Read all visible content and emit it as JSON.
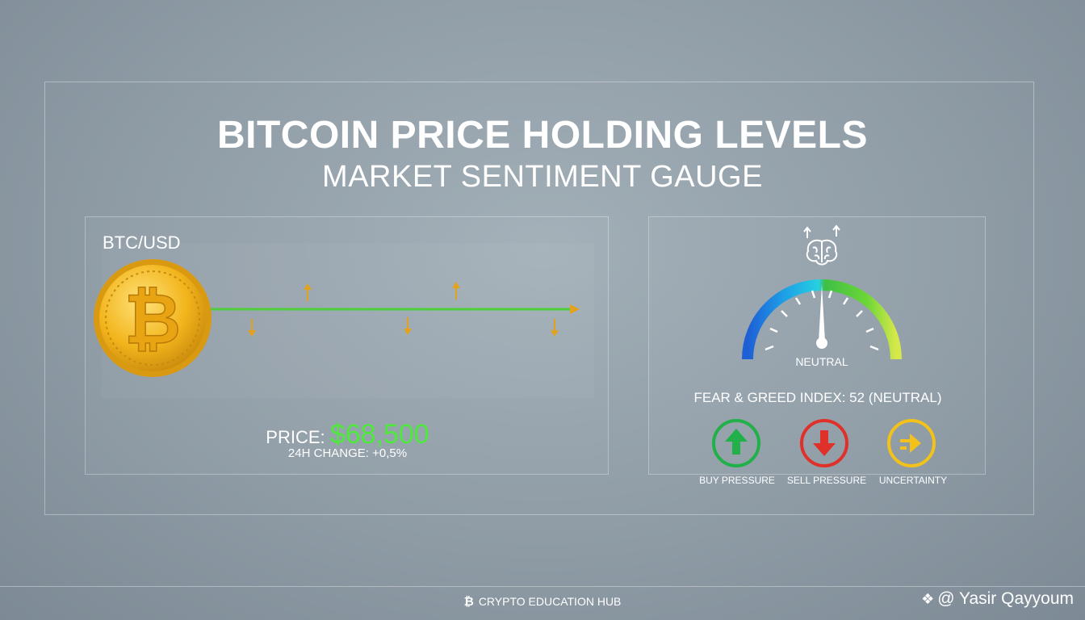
{
  "header": {
    "title": "BITCOIN PRICE HOLDING LEVELS",
    "subtitle": "MARKET SENTIMENT GAUGE"
  },
  "price_panel": {
    "pair": "BTC/USD",
    "price_label": "PRICE:",
    "price_value": "$68,500",
    "change_text": "24H CHANGE: +0,5%",
    "coin_icon": "bitcoin-coin-icon",
    "line_color": "#4ccf3a",
    "arrow_color": "#e3a21e"
  },
  "sentiment_panel": {
    "gauge_label": "NEUTRAL",
    "index_text": "FEAR & GREED INDEX: 52 (NEUTRAL)",
    "gauge_value": 52,
    "brain_icon": "brain-icon",
    "indicators": [
      {
        "label": "BUY PRESSURE",
        "icon": "arrow-up-icon",
        "color": "#22b04a"
      },
      {
        "label": "SELL PRESSURE",
        "icon": "arrow-down-icon",
        "color": "#e0302a"
      },
      {
        "label": "UNCERTAINTY",
        "icon": "arrow-right-icon",
        "color": "#f2c21a"
      }
    ]
  },
  "footer": {
    "brand_symbol": "₿",
    "brand": "CRYPTO EDUCATION HUB",
    "watermark": "@ Yasir Qayyoum",
    "watermark_icon": "diamond-logo-icon"
  }
}
